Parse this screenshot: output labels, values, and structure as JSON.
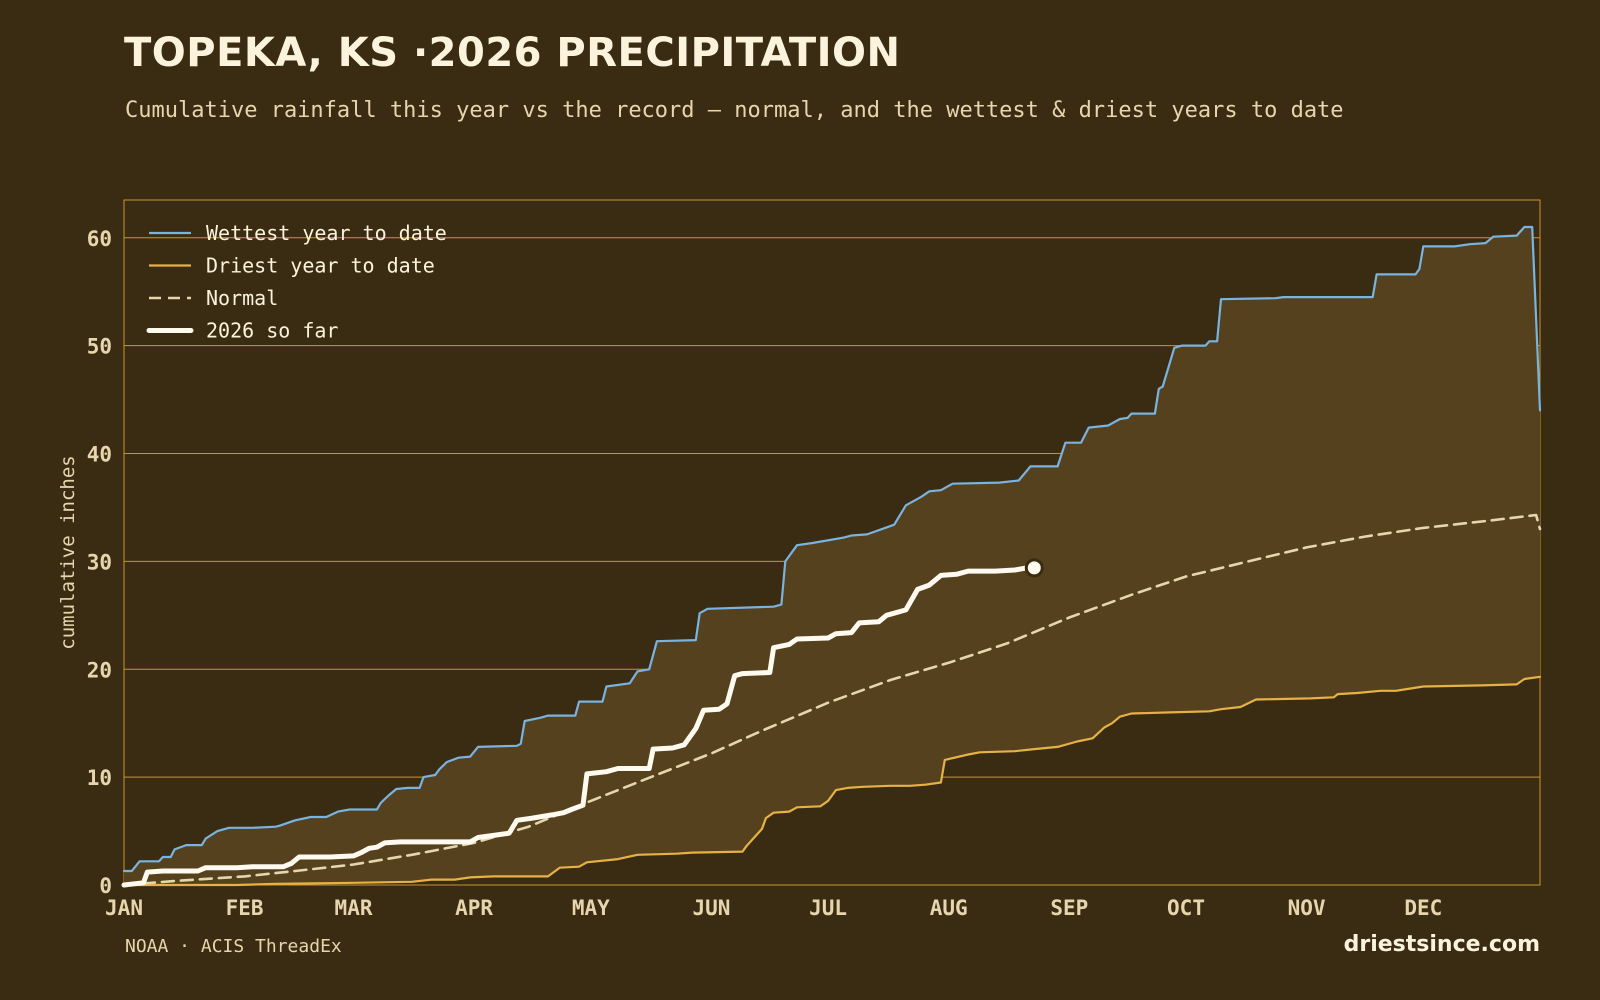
{
  "header": {
    "title": "TOPEKA, KS ·2026 PRECIPITATION",
    "subtitle": "Cumulative rainfall this year vs the record — normal, and the wettest & driest years to date"
  },
  "footer": {
    "source": "NOAA · ACIS ThreadEx",
    "brand": "driestsince.com"
  },
  "colors": {
    "background": "#3a2c12",
    "band_fill": "#56411f",
    "gridline": "#c9962e",
    "wettest": "#79b3e0",
    "driest": "#e6b245",
    "normal": "#e6d6ae",
    "current": "#fffaf0"
  },
  "chart_data": {
    "type": "line",
    "title": "TOPEKA, KS ·2026 PRECIPITATION",
    "subtitle": "Cumulative rainfall this year vs the record — normal, and the wettest & driest years to date",
    "xlabel": "",
    "ylabel": "cumulative inches",
    "x_unit": "day of year",
    "xlim": [
      1,
      365
    ],
    "ylim": [
      0,
      63.5
    ],
    "yticks": [
      0,
      10,
      20,
      30,
      40,
      50,
      60
    ],
    "xticks": [
      {
        "label": "JAN",
        "day": 1
      },
      {
        "label": "FEB",
        "day": 32
      },
      {
        "label": "MAR",
        "day": 60
      },
      {
        "label": "APR",
        "day": 91
      },
      {
        "label": "MAY",
        "day": 121
      },
      {
        "label": "JUN",
        "day": 152
      },
      {
        "label": "JUL",
        "day": 182
      },
      {
        "label": "AUG",
        "day": 213
      },
      {
        "label": "SEP",
        "day": 244
      },
      {
        "label": "OCT",
        "day": 274
      },
      {
        "label": "NOV",
        "day": 305
      },
      {
        "label": "DEC",
        "day": 335
      }
    ],
    "grid": true,
    "legend_position": "top-left",
    "series": [
      {
        "name": "Wettest year to date",
        "style": "solid",
        "color": "#79b3e0",
        "points": [
          [
            1,
            1.3
          ],
          [
            3,
            1.3
          ],
          [
            5,
            2.2
          ],
          [
            10,
            2.2
          ],
          [
            11,
            2.6
          ],
          [
            13,
            2.6
          ],
          [
            14,
            3.3
          ],
          [
            17,
            3.7
          ],
          [
            21,
            3.7
          ],
          [
            22,
            4.3
          ],
          [
            25,
            5.0
          ],
          [
            28,
            5.3
          ],
          [
            34,
            5.3
          ],
          [
            40,
            5.4
          ],
          [
            41,
            5.5
          ],
          [
            45,
            6.0
          ],
          [
            49,
            6.3
          ],
          [
            53,
            6.3
          ],
          [
            56,
            6.8
          ],
          [
            59,
            7.0
          ],
          [
            66,
            7.0
          ],
          [
            67,
            7.6
          ],
          [
            69,
            8.3
          ],
          [
            71,
            8.9
          ],
          [
            74,
            9.0
          ],
          [
            77,
            9.0
          ],
          [
            78,
            10.0
          ],
          [
            81,
            10.2
          ],
          [
            82,
            10.7
          ],
          [
            84,
            11.4
          ],
          [
            87,
            11.8
          ],
          [
            90,
            11.9
          ],
          [
            92,
            12.8
          ],
          [
            102,
            12.9
          ],
          [
            103,
            13.1
          ],
          [
            104,
            15.2
          ],
          [
            108,
            15.5
          ],
          [
            110,
            15.7
          ],
          [
            117,
            15.7
          ],
          [
            118,
            17.0
          ],
          [
            124,
            17.0
          ],
          [
            125,
            18.4
          ],
          [
            131,
            18.7
          ],
          [
            133,
            19.8
          ],
          [
            136,
            20.0
          ],
          [
            138,
            22.6
          ],
          [
            148,
            22.7
          ],
          [
            149,
            25.2
          ],
          [
            151,
            25.6
          ],
          [
            168,
            25.8
          ],
          [
            170,
            26.0
          ],
          [
            171,
            30.0
          ],
          [
            174,
            31.5
          ],
          [
            178,
            31.7
          ],
          [
            186,
            32.2
          ],
          [
            188,
            32.4
          ],
          [
            192,
            32.5
          ],
          [
            199,
            33.4
          ],
          [
            202,
            35.2
          ],
          [
            206,
            36.0
          ],
          [
            208,
            36.5
          ],
          [
            211,
            36.6
          ],
          [
            214,
            37.2
          ],
          [
            226,
            37.3
          ],
          [
            231,
            37.5
          ],
          [
            234,
            38.8
          ],
          [
            241,
            38.8
          ],
          [
            243,
            41.0
          ],
          [
            247,
            41.0
          ],
          [
            249,
            42.4
          ],
          [
            254,
            42.6
          ],
          [
            257,
            43.2
          ],
          [
            259,
            43.3
          ],
          [
            260,
            43.7
          ],
          [
            266,
            43.7
          ],
          [
            267,
            46.0
          ],
          [
            268,
            46.2
          ],
          [
            271,
            49.8
          ],
          [
            273,
            50.0
          ],
          [
            279,
            50.0
          ],
          [
            280,
            50.4
          ],
          [
            282,
            50.4
          ],
          [
            283,
            54.3
          ],
          [
            297,
            54.4
          ],
          [
            299,
            54.5
          ],
          [
            322,
            54.5
          ],
          [
            323,
            56.6
          ],
          [
            333,
            56.6
          ],
          [
            334,
            57.1
          ],
          [
            335,
            59.2
          ],
          [
            343,
            59.2
          ],
          [
            347,
            59.4
          ],
          [
            351,
            59.5
          ],
          [
            353,
            60.1
          ],
          [
            359,
            60.2
          ],
          [
            361,
            61.0
          ],
          [
            363,
            61.0
          ],
          [
            365,
            44.0
          ]
        ]
      },
      {
        "name": "Driest year to date",
        "style": "solid",
        "color": "#e6b245",
        "points": [
          [
            1,
            0.0
          ],
          [
            30,
            0.0
          ],
          [
            40,
            0.1
          ],
          [
            60,
            0.2
          ],
          [
            75,
            0.3
          ],
          [
            80,
            0.5
          ],
          [
            86,
            0.5
          ],
          [
            90,
            0.7
          ],
          [
            96,
            0.8
          ],
          [
            110,
            0.8
          ],
          [
            113,
            1.6
          ],
          [
            118,
            1.7
          ],
          [
            120,
            2.1
          ],
          [
            128,
            2.4
          ],
          [
            133,
            2.8
          ],
          [
            143,
            2.9
          ],
          [
            147,
            3.0
          ],
          [
            160,
            3.1
          ],
          [
            161,
            3.6
          ],
          [
            163,
            4.4
          ],
          [
            165,
            5.2
          ],
          [
            166,
            6.2
          ],
          [
            168,
            6.7
          ],
          [
            172,
            6.8
          ],
          [
            174,
            7.2
          ],
          [
            180,
            7.3
          ],
          [
            182,
            7.8
          ],
          [
            184,
            8.8
          ],
          [
            187,
            9.0
          ],
          [
            191,
            9.1
          ],
          [
            198,
            9.2
          ],
          [
            203,
            9.2
          ],
          [
            207,
            9.3
          ],
          [
            211,
            9.5
          ],
          [
            212,
            11.6
          ],
          [
            218,
            12.1
          ],
          [
            221,
            12.3
          ],
          [
            230,
            12.4
          ],
          [
            235,
            12.6
          ],
          [
            241,
            12.8
          ],
          [
            246,
            13.3
          ],
          [
            250,
            13.6
          ],
          [
            253,
            14.6
          ],
          [
            255,
            15.0
          ],
          [
            257,
            15.6
          ],
          [
            260,
            15.9
          ],
          [
            270,
            16.0
          ],
          [
            280,
            16.1
          ],
          [
            283,
            16.3
          ],
          [
            288,
            16.5
          ],
          [
            292,
            17.2
          ],
          [
            306,
            17.3
          ],
          [
            312,
            17.4
          ],
          [
            313,
            17.7
          ],
          [
            318,
            17.8
          ],
          [
            324,
            18.0
          ],
          [
            328,
            18.0
          ],
          [
            335,
            18.4
          ],
          [
            350,
            18.5
          ],
          [
            359,
            18.6
          ],
          [
            361,
            19.1
          ],
          [
            365,
            19.3
          ]
        ]
      },
      {
        "name": "Normal",
        "style": "dashed",
        "color": "#e6d6ae",
        "points": [
          [
            1,
            0.0
          ],
          [
            15,
            0.4
          ],
          [
            32,
            0.8
          ],
          [
            45,
            1.3
          ],
          [
            60,
            1.9
          ],
          [
            75,
            2.8
          ],
          [
            91,
            3.9
          ],
          [
            105,
            5.4
          ],
          [
            121,
            7.8
          ],
          [
            135,
            9.8
          ],
          [
            152,
            12.2
          ],
          [
            165,
            14.3
          ],
          [
            182,
            16.9
          ],
          [
            198,
            19.0
          ],
          [
            213,
            20.6
          ],
          [
            228,
            22.4
          ],
          [
            244,
            24.8
          ],
          [
            260,
            26.9
          ],
          [
            274,
            28.6
          ],
          [
            290,
            30.0
          ],
          [
            305,
            31.3
          ],
          [
            320,
            32.3
          ],
          [
            335,
            33.1
          ],
          [
            350,
            33.7
          ],
          [
            364,
            34.3
          ],
          [
            365,
            33.0
          ]
        ]
      },
      {
        "name": "2026 so far",
        "style": "solid-thick",
        "color": "#fffaf0",
        "points": [
          [
            1,
            0.0
          ],
          [
            6,
            0.2
          ],
          [
            7,
            1.2
          ],
          [
            11,
            1.3
          ],
          [
            20,
            1.3
          ],
          [
            22,
            1.6
          ],
          [
            30,
            1.6
          ],
          [
            34,
            1.7
          ],
          [
            42,
            1.7
          ],
          [
            44,
            2.0
          ],
          [
            46,
            2.6
          ],
          [
            54,
            2.6
          ],
          [
            60,
            2.7
          ],
          [
            62,
            3.0
          ],
          [
            64,
            3.4
          ],
          [
            66,
            3.5
          ],
          [
            68,
            3.9
          ],
          [
            72,
            4.0
          ],
          [
            79,
            4.0
          ],
          [
            90,
            4.0
          ],
          [
            92,
            4.4
          ],
          [
            96,
            4.6
          ],
          [
            100,
            4.8
          ],
          [
            102,
            6.0
          ],
          [
            106,
            6.2
          ],
          [
            111,
            6.5
          ],
          [
            114,
            6.7
          ],
          [
            116,
            7.0
          ],
          [
            119,
            7.4
          ],
          [
            120,
            10.3
          ],
          [
            125,
            10.5
          ],
          [
            128,
            10.8
          ],
          [
            136,
            10.8
          ],
          [
            137,
            12.6
          ],
          [
            142,
            12.7
          ],
          [
            145,
            13.0
          ],
          [
            148,
            14.5
          ],
          [
            150,
            16.2
          ],
          [
            154,
            16.3
          ],
          [
            156,
            16.8
          ],
          [
            158,
            19.4
          ],
          [
            160,
            19.6
          ],
          [
            167,
            19.7
          ],
          [
            168,
            22.0
          ],
          [
            172,
            22.3
          ],
          [
            174,
            22.8
          ],
          [
            182,
            22.9
          ],
          [
            184,
            23.3
          ],
          [
            188,
            23.4
          ],
          [
            190,
            24.3
          ],
          [
            195,
            24.4
          ],
          [
            197,
            25.0
          ],
          [
            202,
            25.5
          ],
          [
            205,
            27.4
          ],
          [
            208,
            27.8
          ],
          [
            211,
            28.7
          ],
          [
            215,
            28.8
          ],
          [
            218,
            29.1
          ],
          [
            225,
            29.1
          ],
          [
            230,
            29.2
          ],
          [
            233,
            29.4
          ],
          [
            235,
            29.4
          ]
        ],
        "last_point": [
          235,
          29.4
        ]
      }
    ]
  }
}
